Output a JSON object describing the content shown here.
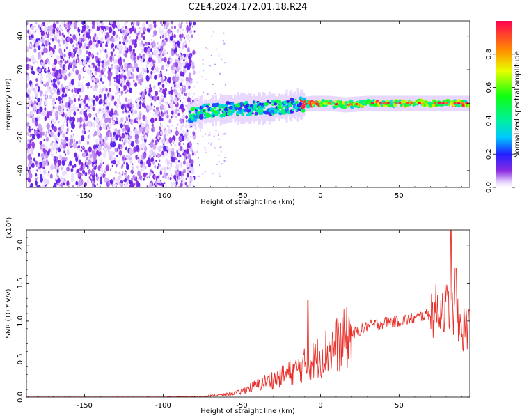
{
  "figure": {
    "title": "C2E4.2024.172.01.18.R24"
  },
  "chart_data": [
    {
      "type": "heatmap",
      "xlabel": "Height of straight line (km)",
      "ylabel": "Frequency (Hz)",
      "xlim": [
        -187,
        95
      ],
      "ylim": [
        -50,
        49
      ],
      "xticks": [
        -150,
        -100,
        -50,
        0,
        50
      ],
      "xtick_labels": [
        "-150",
        "-100",
        "-50",
        "0",
        "50"
      ],
      "yticks": [
        -40,
        -20,
        0,
        20,
        40
      ],
      "ytick_labels": [
        "-40",
        "-20",
        "0",
        "20",
        "40"
      ],
      "ridge": {
        "x": [
          -83,
          -75,
          -65,
          -55,
          -45,
          -35,
          -25,
          -15,
          -5,
          5,
          15,
          30,
          50,
          70,
          95
        ],
        "y": [
          -7,
          -5,
          -4,
          -3,
          -3,
          -3,
          -2,
          -1,
          0,
          0,
          -1,
          0,
          0,
          0,
          0
        ]
      },
      "noise_region_x": [
        -187,
        -80
      ],
      "colorbar": {
        "label": "Normalized spectral amplitude",
        "range": [
          0.0,
          1.0
        ],
        "ticks": [
          0.0,
          0.2,
          0.4,
          0.6,
          0.8
        ],
        "tick_labels": [
          "0.0",
          "0.2",
          "0.4",
          "0.6",
          "0.8"
        ],
        "colormap": "gist_rainbow_r"
      }
    },
    {
      "type": "line",
      "xlabel": "Height of straight line (km)",
      "ylabel": "SNR (10 * v/v)",
      "multiplier": "(x10⁴)",
      "xlim": [
        -187,
        95
      ],
      "ylim": [
        0,
        2.2
      ],
      "xticks": [
        -150,
        -100,
        -50,
        0,
        50
      ],
      "xtick_labels": [
        "-150",
        "-100",
        "-50",
        "0",
        "50"
      ],
      "yticks": [
        0.0,
        0.5,
        1.0,
        1.5,
        2.0
      ],
      "ytick_labels": [
        "0.0",
        "0.5",
        "1.0",
        "1.5",
        "2.0"
      ],
      "color": "#e8302a",
      "envelope": {
        "x": [
          -187,
          -100,
          -75,
          -62,
          -52,
          -45,
          -35,
          -25,
          -15,
          -5,
          0,
          10,
          20,
          30,
          40,
          50,
          60,
          70,
          78,
          83,
          87,
          92,
          95
        ],
        "y": [
          0.0,
          0.0,
          0.01,
          0.03,
          0.06,
          0.12,
          0.2,
          0.27,
          0.36,
          0.48,
          0.55,
          0.68,
          0.82,
          0.93,
          0.98,
          1.0,
          1.04,
          1.1,
          1.2,
          1.15,
          0.95,
          0.9,
          1.05
        ]
      },
      "peaks": [
        {
          "x": -8,
          "y": 1.28
        },
        {
          "x": 83,
          "y": 2.2
        },
        {
          "x": 86,
          "y": 1.7
        }
      ]
    }
  ]
}
